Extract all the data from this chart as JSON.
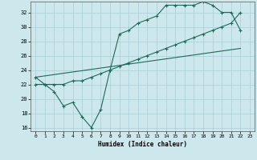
{
  "xlabel": "Humidex (Indice chaleur)",
  "bg_color": "#cce8ec",
  "grid_color": "#aacdd4",
  "line_color": "#1a6b5a",
  "xlim": [
    -0.5,
    23.5
  ],
  "ylim": [
    15.5,
    33.5
  ],
  "xticks": [
    0,
    1,
    2,
    3,
    4,
    5,
    6,
    7,
    8,
    9,
    10,
    11,
    12,
    13,
    14,
    15,
    16,
    17,
    18,
    19,
    20,
    21,
    22,
    23
  ],
  "yticks": [
    16,
    18,
    20,
    22,
    24,
    26,
    28,
    30,
    32
  ],
  "line1_x": [
    0,
    1,
    2,
    3,
    4,
    5,
    6,
    7,
    8,
    9,
    10,
    11,
    12,
    13,
    14,
    15,
    16,
    17,
    18,
    19,
    20,
    21,
    22
  ],
  "line1_y": [
    23,
    22,
    21,
    19,
    19.5,
    17.5,
    16,
    18.5,
    24,
    29,
    29.5,
    30.5,
    31,
    31.5,
    33,
    33,
    33,
    33,
    33.5,
    33,
    32,
    32,
    29.5
  ],
  "line2_x": [
    0,
    22
  ],
  "line2_y": [
    23,
    27
  ],
  "line3_x": [
    0,
    1,
    2,
    3,
    4,
    5,
    6,
    7,
    8,
    9,
    10,
    11,
    12,
    13,
    14,
    15,
    16,
    17,
    18,
    19,
    20,
    21,
    22
  ],
  "line3_y": [
    22,
    22,
    22,
    22,
    22.5,
    22.5,
    23,
    23.5,
    24,
    24.5,
    25,
    25.5,
    26,
    26.5,
    27,
    27.5,
    28,
    28.5,
    29,
    29.5,
    30,
    30.5,
    32
  ]
}
